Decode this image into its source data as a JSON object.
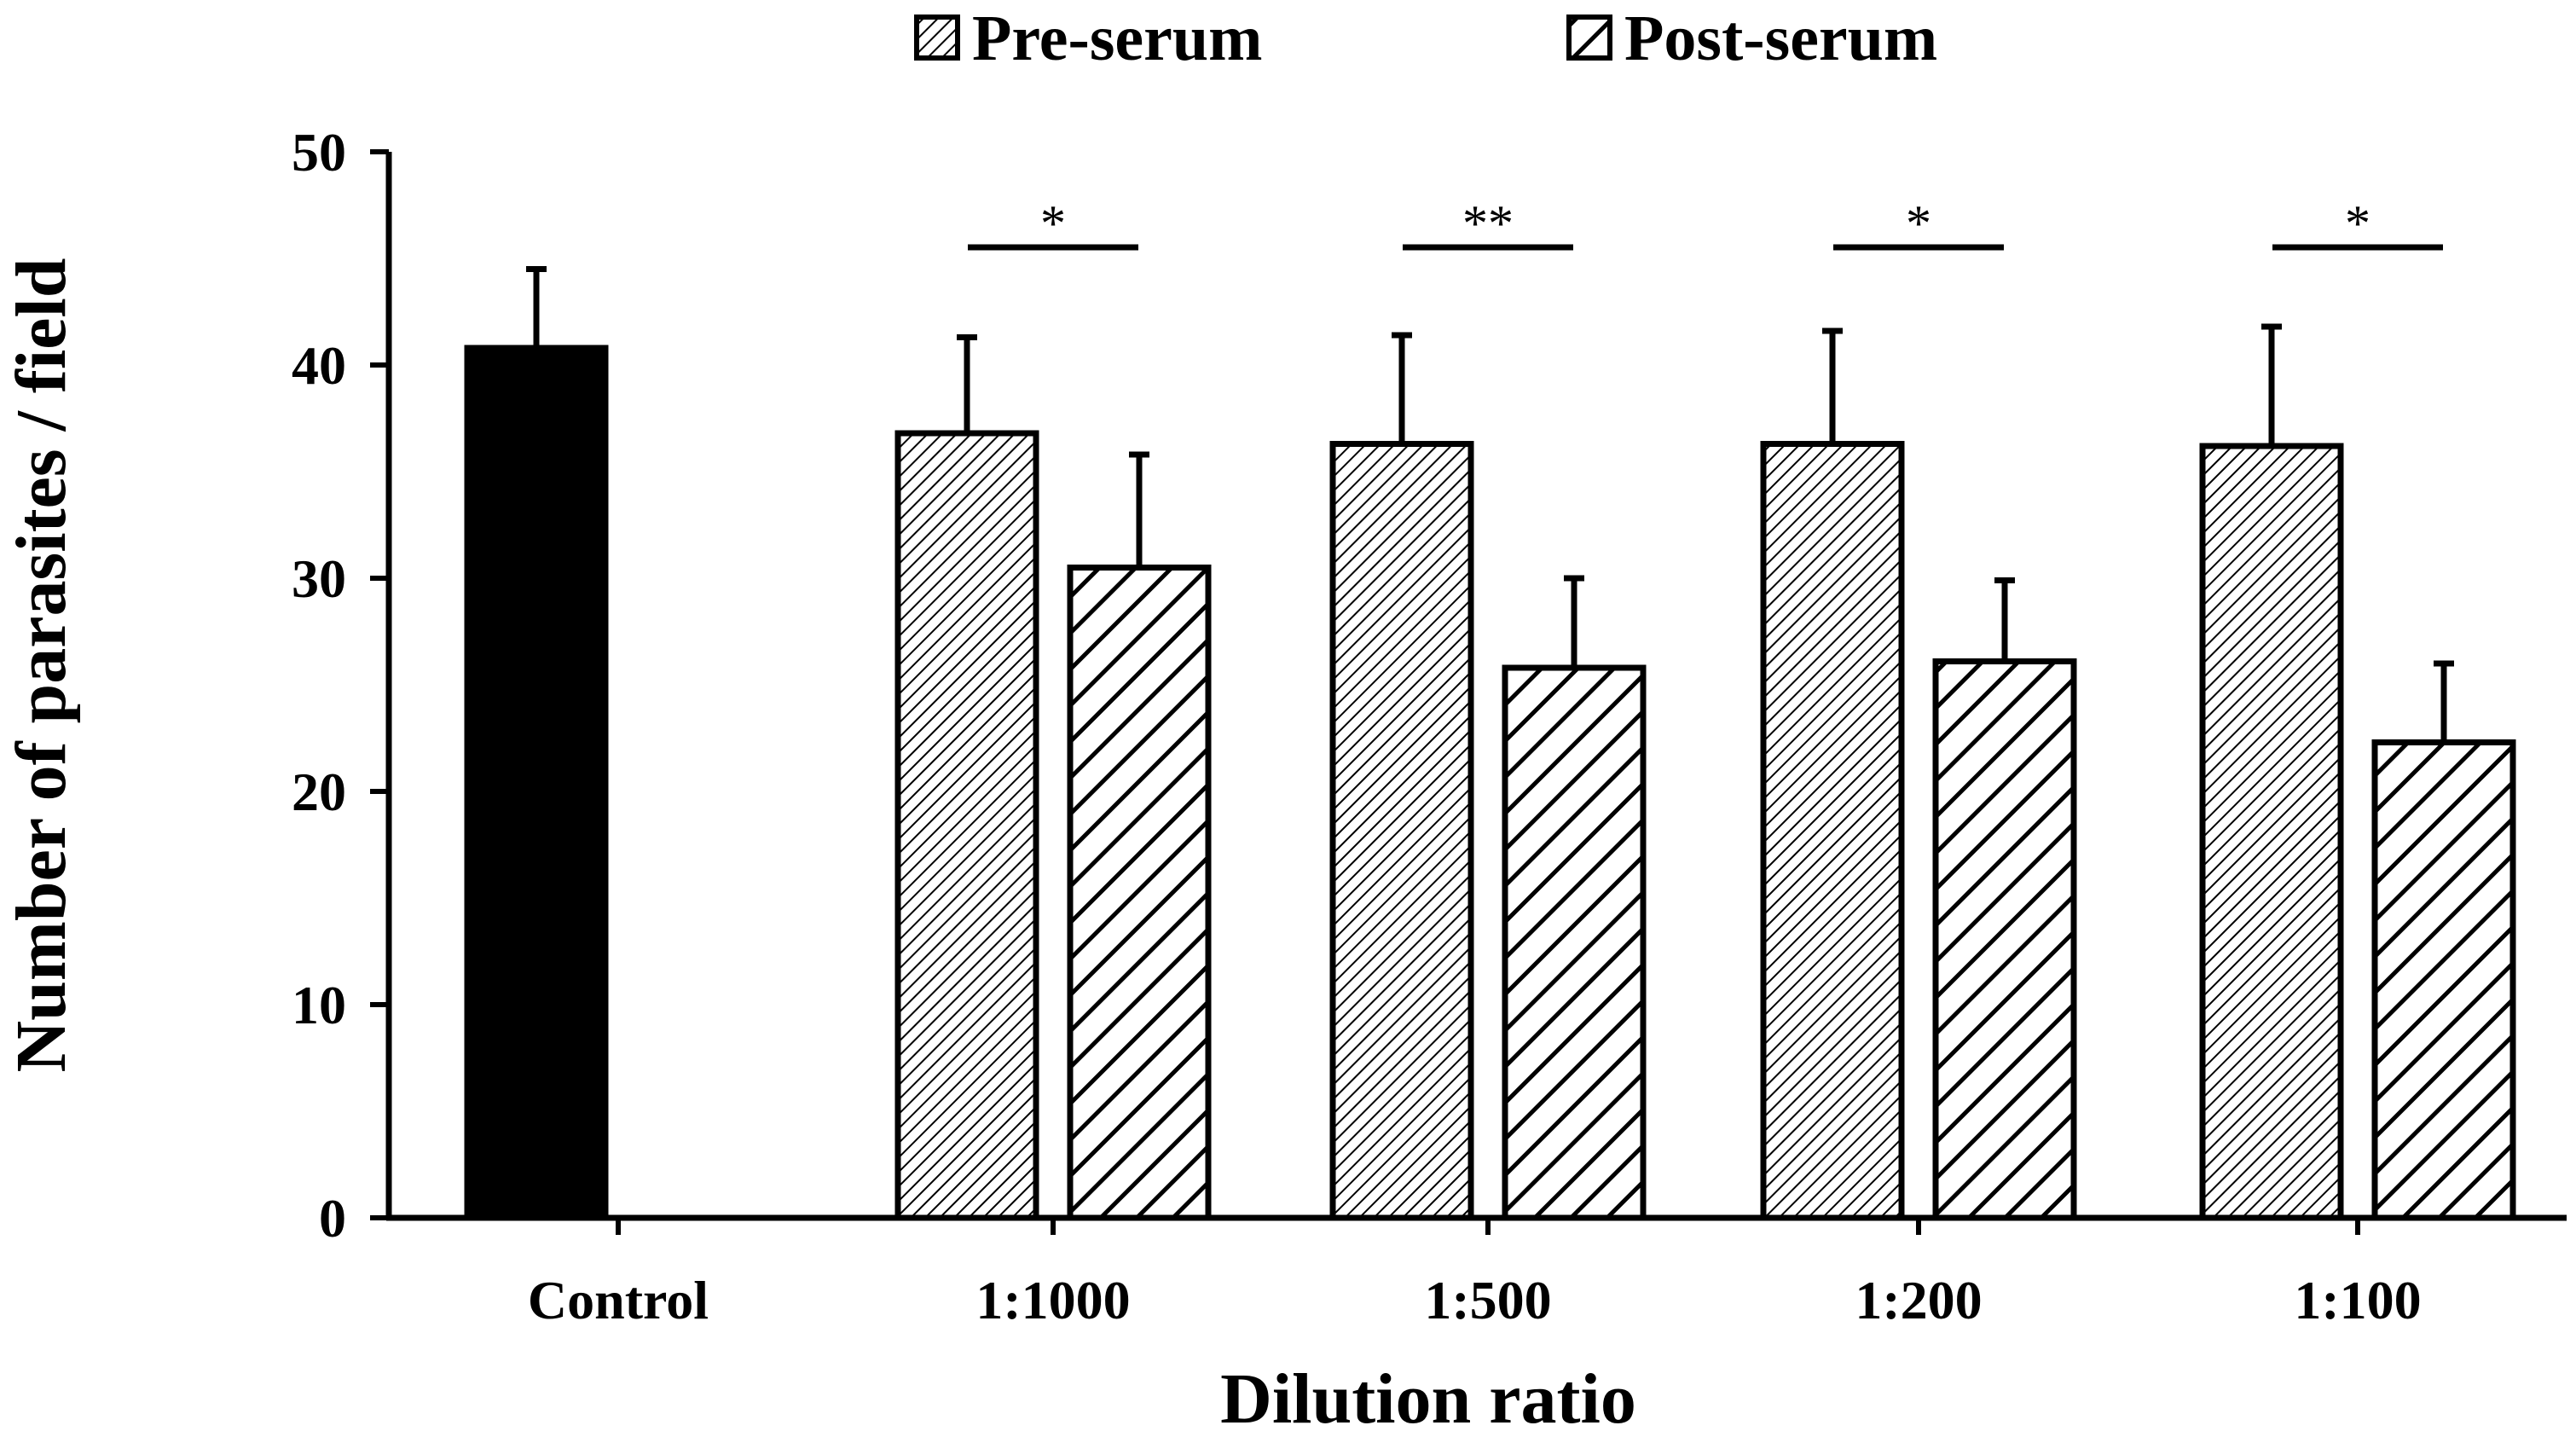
{
  "chart_data": {
    "type": "bar",
    "categories": [
      "Control",
      "1:1000",
      "1:500",
      "1:200",
      "1:100"
    ],
    "series": [
      {
        "name": "Control",
        "values": [
          40.8,
          null,
          null,
          null,
          null
        ],
        "errors": [
          3.7,
          null,
          null,
          null,
          null
        ],
        "pattern": "solid",
        "legend": false
      },
      {
        "name": "Pre-serum",
        "values": [
          null,
          36.8,
          36.3,
          36.3,
          36.2
        ],
        "errors": [
          null,
          4.5,
          5.1,
          5.3,
          5.6
        ],
        "pattern": "fine-hatch",
        "legend": true
      },
      {
        "name": "Post-serum",
        "values": [
          null,
          30.5,
          25.8,
          26.1,
          22.3
        ],
        "errors": [
          null,
          5.3,
          4.2,
          3.8,
          3.7
        ],
        "pattern": "coarse-hatch",
        "legend": true
      }
    ],
    "significance": [
      {
        "category": "1:1000",
        "label": "*"
      },
      {
        "category": "1:500",
        "label": "**"
      },
      {
        "category": "1:200",
        "label": "*"
      },
      {
        "category": "1:100",
        "label": "*"
      }
    ],
    "yticks": [
      0,
      10,
      20,
      30,
      40,
      50
    ],
    "ylim": [
      0,
      50
    ],
    "xlabel": "Dilution ratio",
    "ylabel": "Number of parasites / field",
    "title": "",
    "legend_position": "top-center",
    "colors": {
      "bar_fill": "#ffffff",
      "stroke": "#000000",
      "solid": "#000000"
    }
  }
}
